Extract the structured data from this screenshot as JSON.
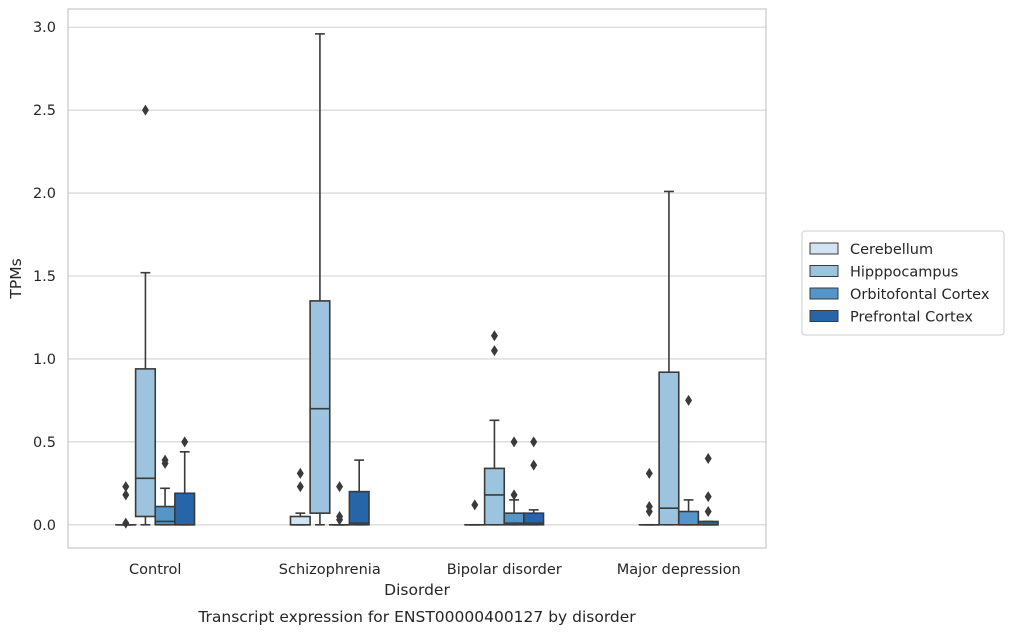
{
  "chart_data": {
    "type": "box",
    "title": "",
    "caption": "Transcript expression for ENST00000400127 by disorder",
    "xlabel": "Disorder",
    "ylabel": "TPMs",
    "ylim": [
      -0.14,
      3.11
    ],
    "yticks": [
      0.0,
      0.5,
      1.0,
      1.5,
      2.0,
      2.5,
      3.0
    ],
    "ytick_labels": [
      "0.0",
      "0.5",
      "1.0",
      "1.5",
      "2.0",
      "2.5",
      "3.0"
    ],
    "grid": "horizontal",
    "legend_position": "right",
    "categories": [
      "Control",
      "Schizophrenia",
      "Bipolar disorder",
      "Major depression"
    ],
    "series": [
      {
        "name": "Cerebellum",
        "color": "#d4e3f1",
        "boxes": [
          {
            "q1": 0,
            "median": 0,
            "q3": 0,
            "whisker_low": 0,
            "whisker_high": 0,
            "outliers": [
              0.01,
              0.18,
              0.23
            ]
          },
          {
            "q1": 0,
            "median": 0,
            "q3": 0.05,
            "whisker_low": 0,
            "whisker_high": 0.07,
            "outliers": [
              0.23,
              0.31
            ]
          },
          {
            "q1": 0,
            "median": 0,
            "q3": 0,
            "whisker_low": 0,
            "whisker_high": 0,
            "outliers": [
              0.12
            ]
          },
          {
            "q1": 0,
            "median": 0,
            "q3": 0,
            "whisker_low": 0,
            "whisker_high": 0,
            "outliers": [
              0.08,
              0.11,
              0.31
            ]
          }
        ]
      },
      {
        "name": "Hipppocampus",
        "color": "#9dc4de",
        "boxes": [
          {
            "q1": 0.05,
            "median": 0.28,
            "q3": 0.94,
            "whisker_low": 0,
            "whisker_high": 1.52,
            "outliers": [
              2.5
            ]
          },
          {
            "q1": 0.07,
            "median": 0.7,
            "q3": 1.35,
            "whisker_low": 0,
            "whisker_high": 2.96,
            "outliers": []
          },
          {
            "q1": 0,
            "median": 0.18,
            "q3": 0.34,
            "whisker_low": 0,
            "whisker_high": 0.63,
            "outliers": [
              1.05,
              1.14
            ]
          },
          {
            "q1": 0,
            "median": 0.1,
            "q3": 0.92,
            "whisker_low": 0,
            "whisker_high": 2.01,
            "outliers": []
          }
        ]
      },
      {
        "name": "Orbitofontal Cortex",
        "color": "#5496c8",
        "boxes": [
          {
            "q1": 0,
            "median": 0.02,
            "q3": 0.11,
            "whisker_low": 0,
            "whisker_high": 0.22,
            "outliers": [
              0.37,
              0.39
            ]
          },
          {
            "q1": 0,
            "median": 0,
            "q3": 0,
            "whisker_low": 0,
            "whisker_high": 0,
            "outliers": [
              0.03,
              0.05,
              0.23
            ]
          },
          {
            "q1": 0,
            "median": 0.01,
            "q3": 0.07,
            "whisker_low": 0,
            "whisker_high": 0.15,
            "outliers": [
              0.18,
              0.5
            ]
          },
          {
            "q1": 0,
            "median": 0,
            "q3": 0.08,
            "whisker_low": 0,
            "whisker_high": 0.15,
            "outliers": [
              0.75
            ]
          }
        ]
      },
      {
        "name": "Prefrontal Cortex",
        "color": "#2565a8",
        "boxes": [
          {
            "q1": 0,
            "median": 0,
            "q3": 0.19,
            "whisker_low": 0,
            "whisker_high": 0.44,
            "outliers": [
              0.5
            ]
          },
          {
            "q1": 0,
            "median": 0.01,
            "q3": 0.2,
            "whisker_low": 0,
            "whisker_high": 0.39,
            "outliers": []
          },
          {
            "q1": 0,
            "median": 0.01,
            "q3": 0.07,
            "whisker_low": 0,
            "whisker_high": 0.09,
            "outliers": [
              0.36,
              0.5
            ]
          },
          {
            "q1": 0,
            "median": 0,
            "q3": 0.02,
            "whisker_low": 0,
            "whisker_high": 0.02,
            "outliers": [
              0.08,
              0.17,
              0.4
            ]
          }
        ]
      }
    ]
  }
}
